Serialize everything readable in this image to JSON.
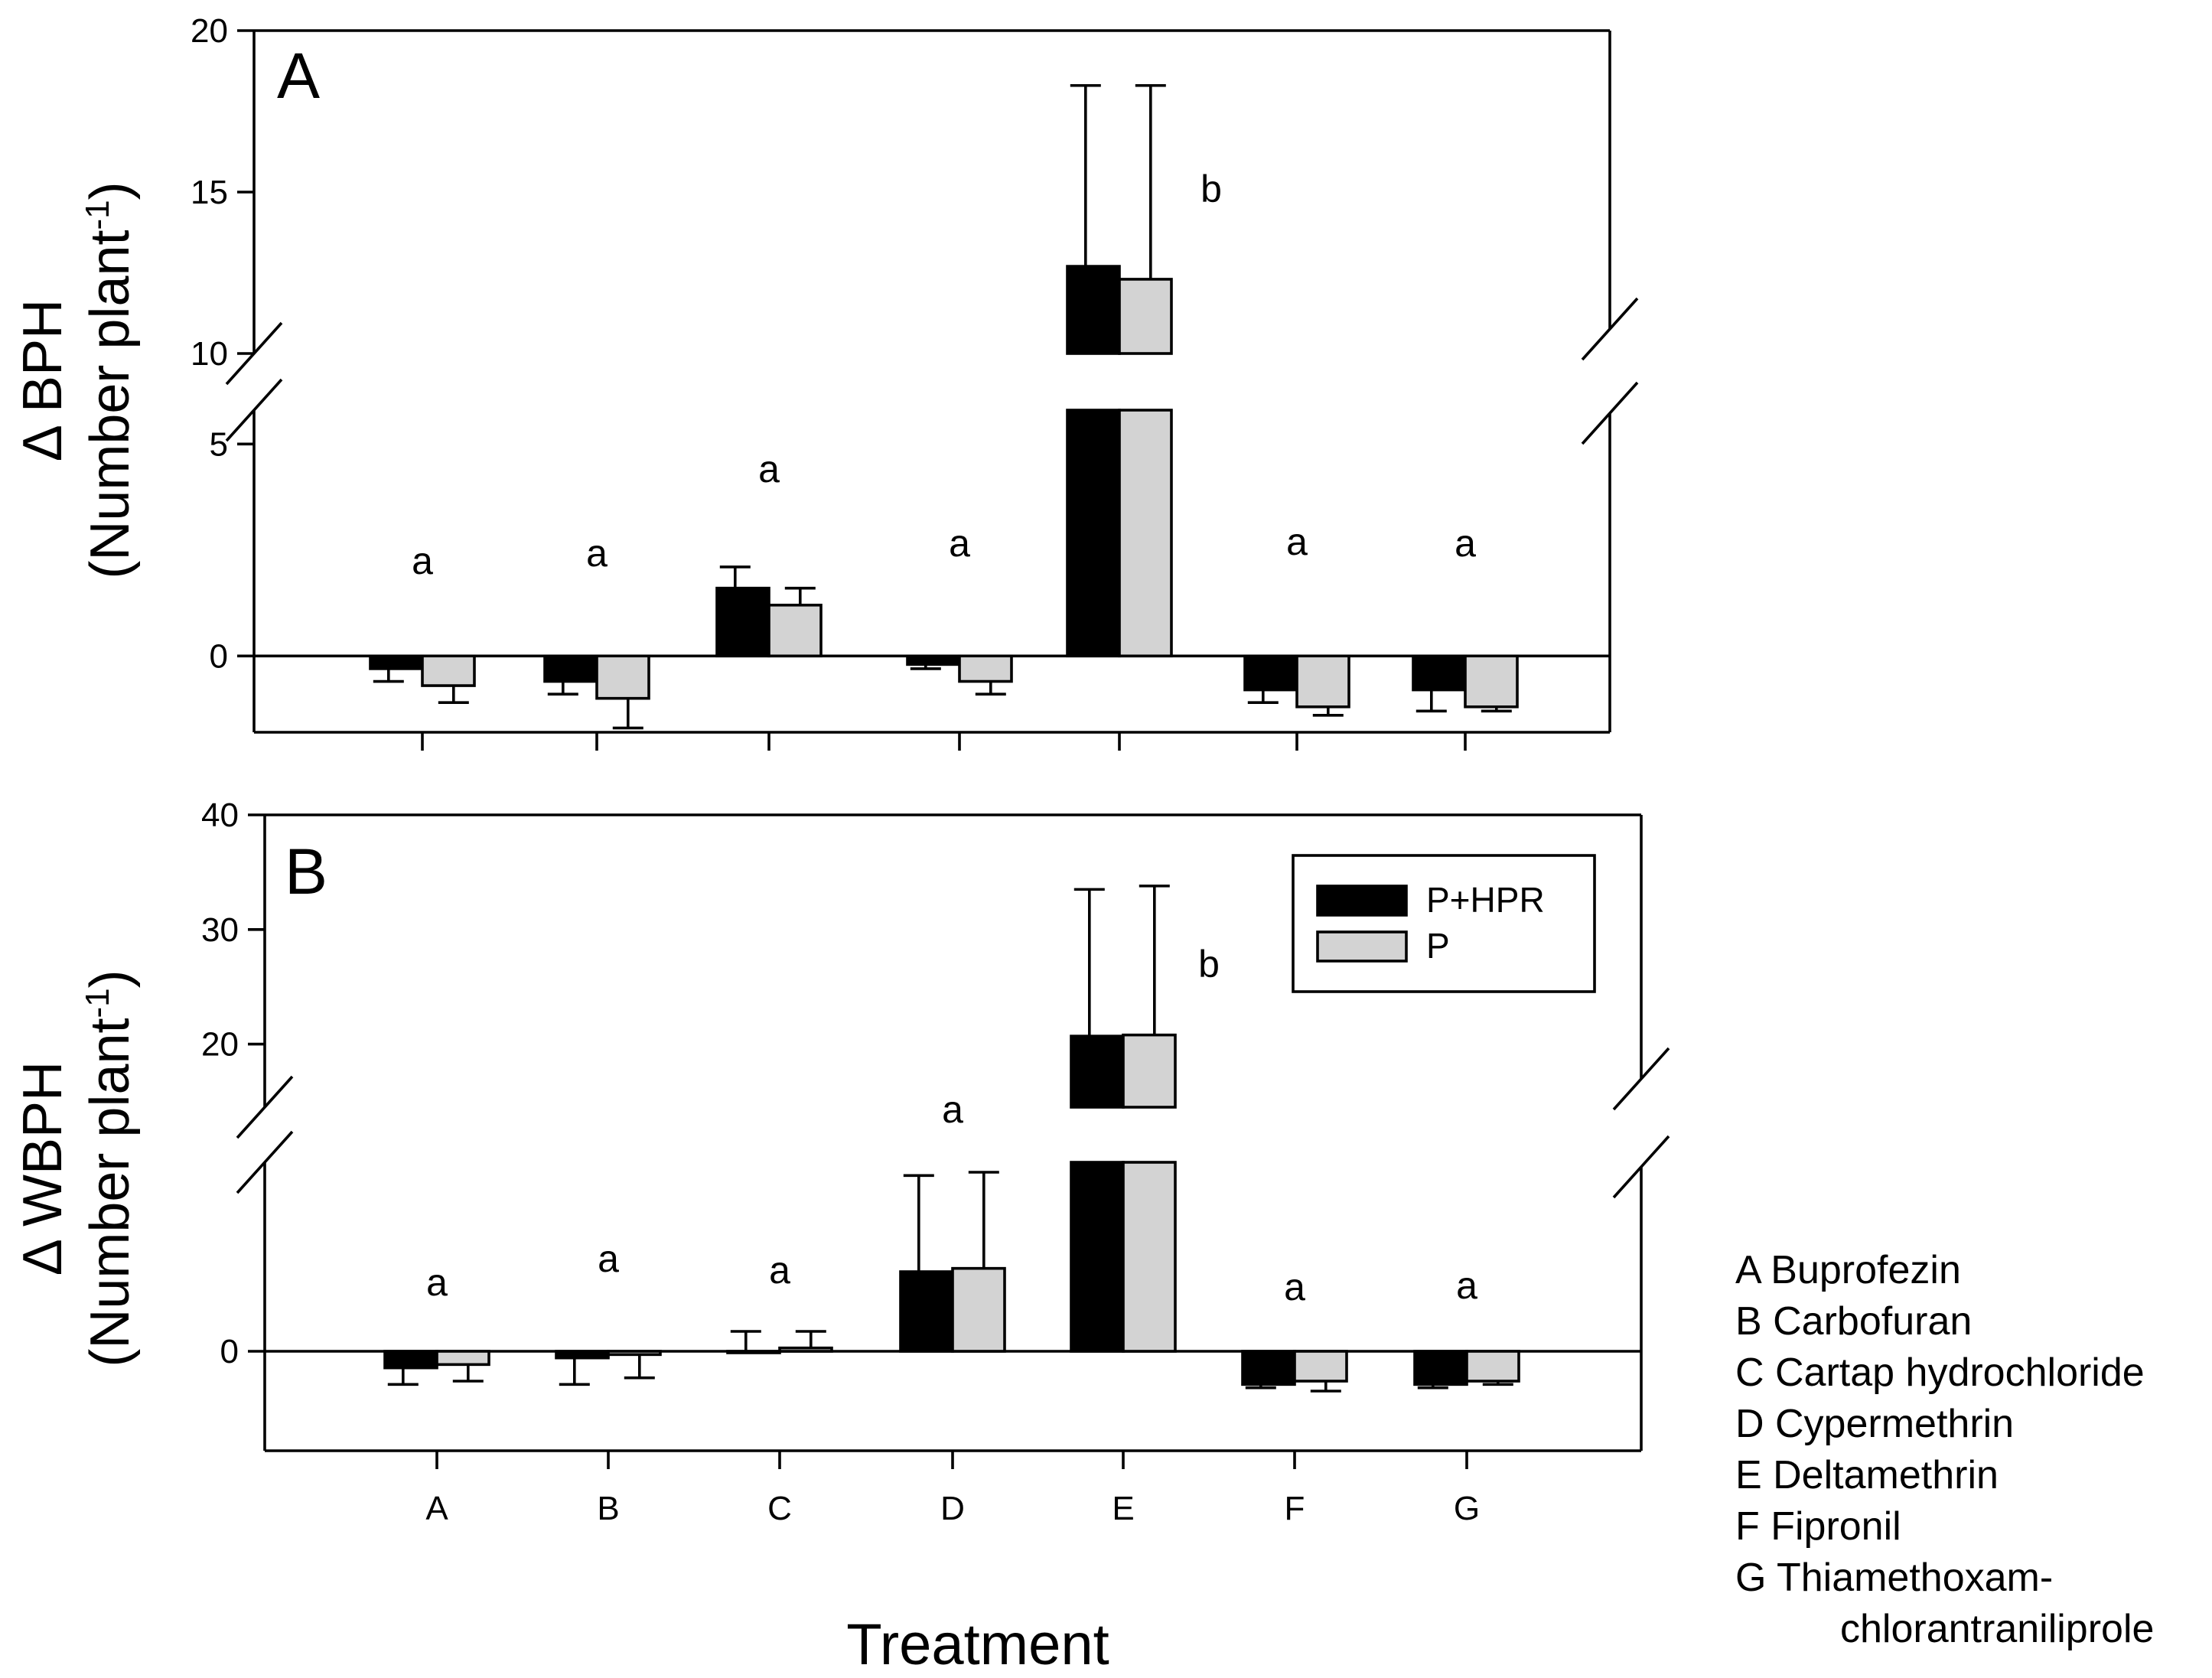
{
  "chart_data": [
    {
      "type": "bar",
      "panel_label": "A",
      "ylabel_line1": "Δ BPH",
      "ylabel_line2": "(Number plant",
      "ylabel_sup": "-1",
      "ylabel_close": ")",
      "categories": [
        "A",
        "B",
        "C",
        "D",
        "E",
        "F",
        "G"
      ],
      "ylim": [
        -1.8,
        20
      ],
      "axis_break": [
        5.8,
        10
      ],
      "yticks": [
        0,
        5,
        10,
        15,
        20
      ],
      "series": [
        {
          "name": "P+HPR",
          "color": "#000000",
          "values": [
            -0.3,
            -0.6,
            1.6,
            -0.2,
            12.7,
            -0.8,
            -0.8
          ],
          "errors": [
            0.3,
            0.3,
            0.5,
            0.1,
            5.6,
            0.3,
            0.5
          ]
        },
        {
          "name": "P",
          "color": "#d3d3d3",
          "values": [
            -0.7,
            -1.0,
            1.2,
            -0.6,
            12.3,
            -1.2,
            -1.2
          ],
          "errors": [
            0.4,
            0.7,
            0.4,
            0.3,
            6.0,
            0.2,
            0.1
          ]
        }
      ],
      "significance": [
        "a",
        "a",
        "a",
        "a",
        "b",
        "a",
        "a"
      ]
    },
    {
      "type": "bar",
      "panel_label": "B",
      "ylabel_line1": "Δ WBPH",
      "ylabel_line2": "(Number plant",
      "ylabel_sup": "-1",
      "ylabel_close": ")",
      "categories": [
        "A",
        "B",
        "C",
        "D",
        "E",
        "F",
        "G"
      ],
      "xlabel": "Treatment",
      "ylim": [
        -3,
        40
      ],
      "axis_break": [
        5.7,
        14.5
      ],
      "yticks": [
        0,
        20,
        30,
        40
      ],
      "series": [
        {
          "name": "P+HPR",
          "color": "#000000",
          "values": [
            -0.5,
            -0.2,
            0.0,
            2.4,
            20.7,
            -1.0,
            -1.0
          ],
          "errors": [
            0.5,
            0.8,
            0.6,
            2.9,
            12.8,
            0.1,
            0.1
          ]
        },
        {
          "name": "P",
          "color": "#d3d3d3",
          "values": [
            -0.4,
            -0.1,
            0.1,
            2.5,
            20.8,
            -0.9,
            -0.9
          ],
          "errors": [
            0.5,
            0.7,
            0.5,
            2.9,
            13.0,
            0.3,
            0.1
          ]
        }
      ],
      "significance": [
        "a",
        "a",
        "a",
        "a",
        "b",
        "a",
        "a"
      ],
      "legend": {
        "position": "top-right",
        "entries": [
          "P+HPR",
          "P"
        ]
      }
    }
  ],
  "treatment_key": [
    "A Buprofezin",
    "B Carbofuran",
    "C Cartap hydrochloride",
    "D Cypermethrin",
    "E Deltamethrin",
    "F Fipronil",
    "G Thiamethoxam-",
    "chlorantraniliprole"
  ]
}
